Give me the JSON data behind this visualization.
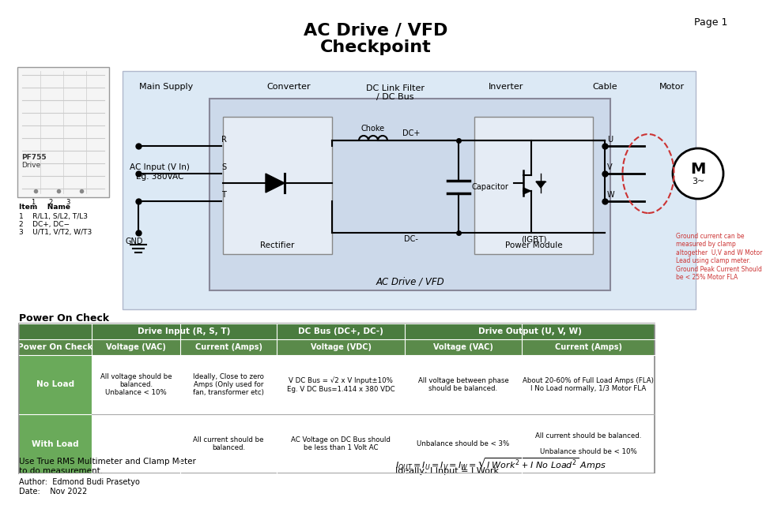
{
  "bg_color": "#ffffff",
  "diagram_bg": "#dce9f5",
  "inner_box_bg": "#ccd9ea",
  "green_dark": "#4a7c3f",
  "green_mid": "#5a8a4a",
  "green_light": "#6aaa5a",
  "ground_note": "Ground current can be\nmeasured by clamp\naltogether  U,V and W Motor\nLead using clamp meter.\nGround Peak Current Should\nbe < 25% Motor FLA",
  "col1_noload": "All voltage should be\nbalanced.\nUnbalance < 10%",
  "col2_noload": "Ideally, Close to zero\nAmps (Only used for\nfan, transformer etc)",
  "col3_noload": "V DC Bus = √2 x V Input±10%\nEg. V DC Bus=1.414 x 380 VDC",
  "col4_noload": "All voltage between phase\nshould be balanced.",
  "col5_noload": "About 20-60% of Full Load Amps (FLA)\nI No Load normally, 1/3 Motor FLA",
  "col2_withload": "All current should be\nbalanced.",
  "col3_withload": "AC Voltage on DC Bus should\nbe less than 1 Volt AC",
  "col4_withload": "Unbalance should be < 3%",
  "col5_withload": "All current should be balanced.\n\nUnbalance should be < 10%",
  "footer_left1": "Use True RMS Multimeter and Clamp Meter",
  "footer_left2": "to do measurement.",
  "author": "Author:  Edmond Budi Prasetyo",
  "date": "Date:    Nov 2022"
}
